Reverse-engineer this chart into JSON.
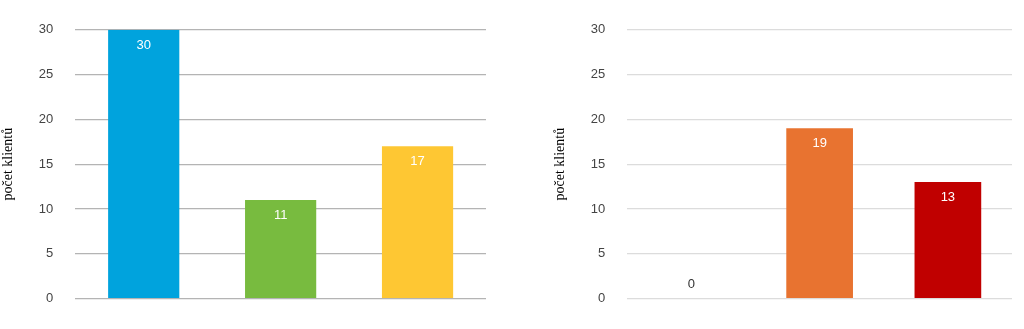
{
  "chart_data": [
    {
      "type": "bar",
      "ylabel": "počet klientů",
      "categories": [
        null,
        null,
        null
      ],
      "values": [
        30,
        11,
        17
      ],
      "colors": [
        "#00a3dd",
        "#78bb3f",
        "#fec733"
      ],
      "ylim": [
        0,
        30
      ],
      "yticks": [
        0,
        5,
        10,
        15,
        20,
        25,
        30
      ],
      "grid": "y",
      "data_labels": true,
      "legend": false
    },
    {
      "type": "bar",
      "ylabel": "počet klientů",
      "categories": [
        null,
        null,
        null
      ],
      "values": [
        0,
        19,
        13
      ],
      "colors": [
        "#a5a5a5",
        "#e87330",
        "#c00000"
      ],
      "ylim": [
        0,
        30
      ],
      "yticks": [
        0,
        5,
        10,
        15,
        20,
        25,
        30
      ],
      "grid": "y",
      "data_labels": true,
      "legend": false
    }
  ]
}
